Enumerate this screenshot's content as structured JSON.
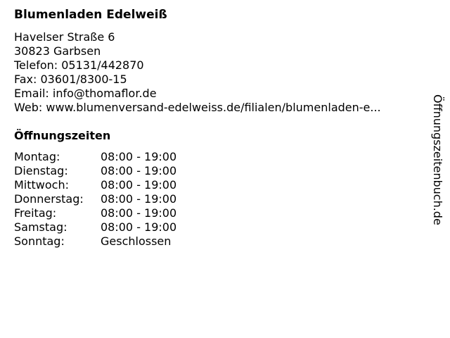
{
  "store": {
    "name": "Blumenladen Edelweiß",
    "street": "Havelser Straße 6",
    "city": "30823 Garbsen",
    "phone": "Telefon: 05131/442870",
    "fax": "Fax: 03601/8300-15",
    "email": "Email: info@thomaflor.de",
    "web": "Web: www.blumenversand-edelweiss.de/filialen/blumenladen-e..."
  },
  "hours": {
    "title": "Öffnungszeiten",
    "rows": [
      {
        "day": "Montag:",
        "time": "08:00 - 19:00"
      },
      {
        "day": "Dienstag:",
        "time": "08:00 - 19:00"
      },
      {
        "day": "Mittwoch:",
        "time": "08:00 - 19:00"
      },
      {
        "day": "Donnerstag:",
        "time": "08:00 - 19:00"
      },
      {
        "day": "Freitag:",
        "time": "08:00 - 19:00"
      },
      {
        "day": "Samstag:",
        "time": "08:00 - 19:00"
      },
      {
        "day": "Sonntag:",
        "time": "Geschlossen"
      }
    ]
  },
  "brand": "Öffnungszeitenbuch.de"
}
